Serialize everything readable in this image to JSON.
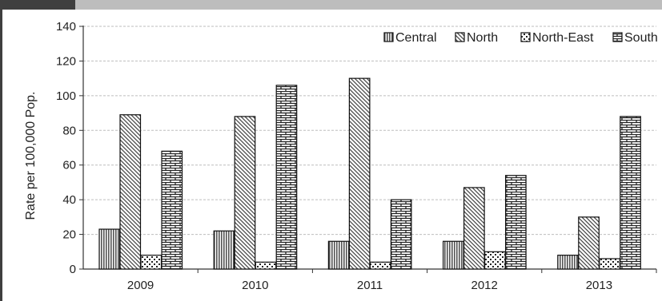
{
  "chart_data": {
    "type": "bar",
    "categories": [
      "2009",
      "2010",
      "2011",
      "2012",
      "2013"
    ],
    "series": [
      {
        "name": "Central",
        "values": [
          23,
          22,
          16,
          16,
          8
        ]
      },
      {
        "name": "North",
        "values": [
          89,
          88,
          110,
          47,
          30
        ]
      },
      {
        "name": "North-East",
        "values": [
          8,
          4,
          4,
          10,
          6
        ]
      },
      {
        "name": "South",
        "values": [
          68,
          106,
          40,
          54,
          88
        ]
      }
    ],
    "title": "",
    "xlabel": "",
    "ylabel": "Rate per 100,000 Pop.",
    "ylim": [
      0,
      140
    ],
    "yticks": [
      "0",
      "20",
      "40",
      "60",
      "80",
      "100",
      "120",
      "140"
    ],
    "grid": true,
    "legend": "top-right"
  }
}
